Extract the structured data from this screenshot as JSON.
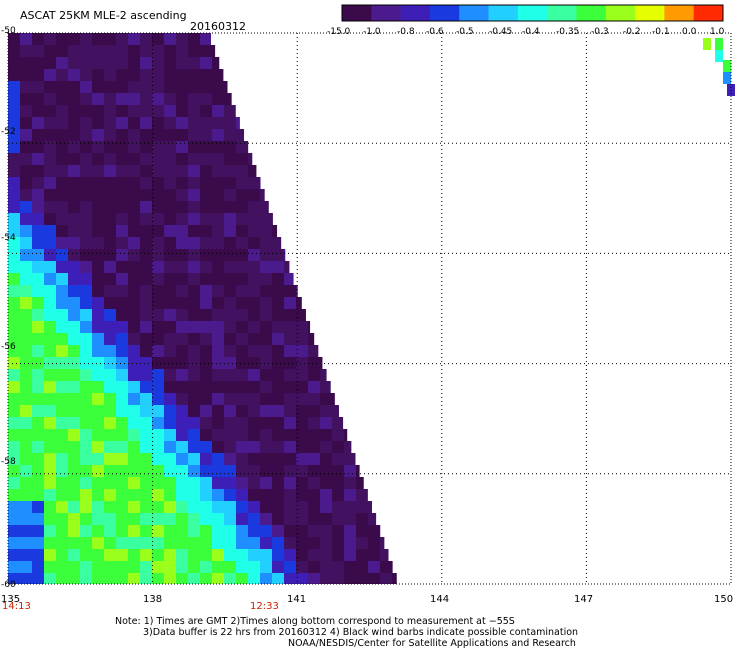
{
  "title": "ASCAT 25KM MLE-2 ascending",
  "date": "20160312",
  "colorbar": {
    "labels": [
      "-15.0",
      "-1.0",
      "-0.8",
      "-0.6",
      "-0.5",
      "-0.45",
      "-0.4",
      "-0.35",
      "-0.3",
      "-0.2",
      "-0.1",
      "0.0",
      "1.0"
    ],
    "colors": [
      "#3a0a4a",
      "#4b1a8c",
      "#3d1fb8",
      "#1a3ae0",
      "#1f8fff",
      "#22d0ff",
      "#20ffe8",
      "#3affa0",
      "#3bff3b",
      "#9aff1a",
      "#e6ff00",
      "#ff9a00",
      "#ff2a00"
    ]
  },
  "axes": {
    "lat_ticks": [
      "-50",
      "-52",
      "-54",
      "-56",
      "-58",
      "-60"
    ],
    "lon_ticks": [
      "135",
      "138",
      "141",
      "144",
      "147",
      "150"
    ]
  },
  "times": [
    "14:13",
    "12:33"
  ],
  "notes": [
    "Note: 1) Times are GMT 2)Times along bottom correspond to measurement at −55S",
    "3)Data buffer is 22 hrs from 20160312 4) Black wind barbs indicate possible contamination",
    "NOAA/NESDIS/Center for Satellite Applications and Research"
  ]
}
